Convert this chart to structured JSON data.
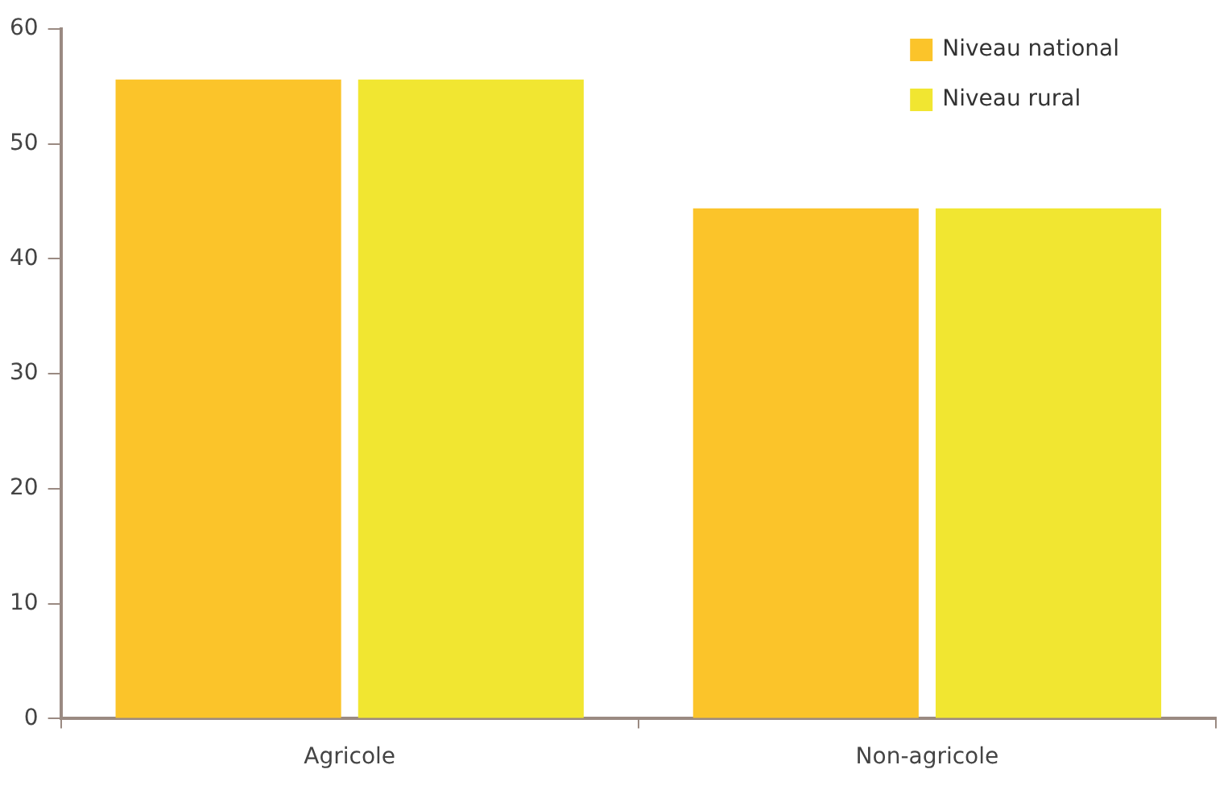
{
  "chart_data": {
    "type": "bar",
    "categories": [
      "Agricole",
      "Non-agricole"
    ],
    "series": [
      {
        "name": "Niveau national",
        "color": "#fbc42a",
        "values": [
          55.6,
          44.4
        ]
      },
      {
        "name": "Niveau rural",
        "color": "#f1e631",
        "values": [
          55.6,
          44.4
        ]
      }
    ],
    "ylim": [
      0,
      60
    ],
    "yticks": [
      0,
      10,
      20,
      30,
      40,
      50,
      60
    ],
    "grid": false,
    "legend": "top right"
  }
}
